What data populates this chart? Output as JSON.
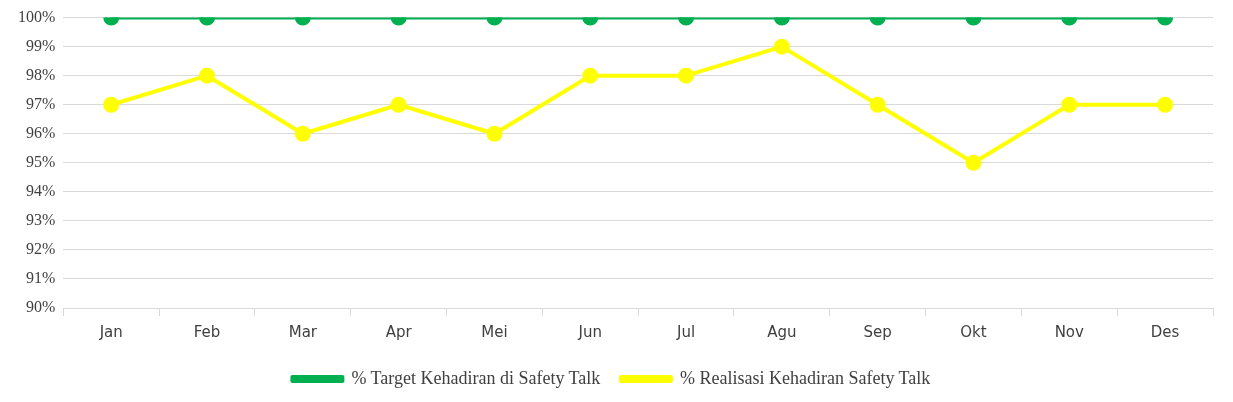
{
  "chart_data": {
    "type": "line",
    "categories": [
      "Jan",
      "Feb",
      "Mar",
      "Apr",
      "Mei",
      "Jun",
      "Jul",
      "Agu",
      "Sep",
      "Okt",
      "Nov",
      "Des"
    ],
    "series": [
      {
        "name": "% Target Kehadiran di Safety Talk",
        "color": "#00b050",
        "values": [
          100,
          100,
          100,
          100,
          100,
          100,
          100,
          100,
          100,
          100,
          100,
          100
        ]
      },
      {
        "name": "% Realisasi Kehadiran Safety Talk",
        "color": "#ffff00",
        "values": [
          97,
          98,
          96,
          97,
          96,
          98,
          98,
          99,
          97,
          95,
          97,
          97
        ]
      }
    ],
    "ylim": [
      90,
      100
    ],
    "yticks": [
      {
        "value": 90,
        "label": "90%"
      },
      {
        "value": 91,
        "label": "91%"
      },
      {
        "value": 92,
        "label": "92%"
      },
      {
        "value": 93,
        "label": "93%"
      },
      {
        "value": 94,
        "label": "94%"
      },
      {
        "value": 95,
        "label": "95%"
      },
      {
        "value": 96,
        "label": "96%"
      },
      {
        "value": 97,
        "label": "97%"
      },
      {
        "value": 98,
        "label": "98%"
      },
      {
        "value": 99,
        "label": "99%"
      },
      {
        "value": 100,
        "label": "100%"
      }
    ],
    "grid": "y",
    "legend": "bottom",
    "marker": "circle",
    "line_style": "solid"
  }
}
